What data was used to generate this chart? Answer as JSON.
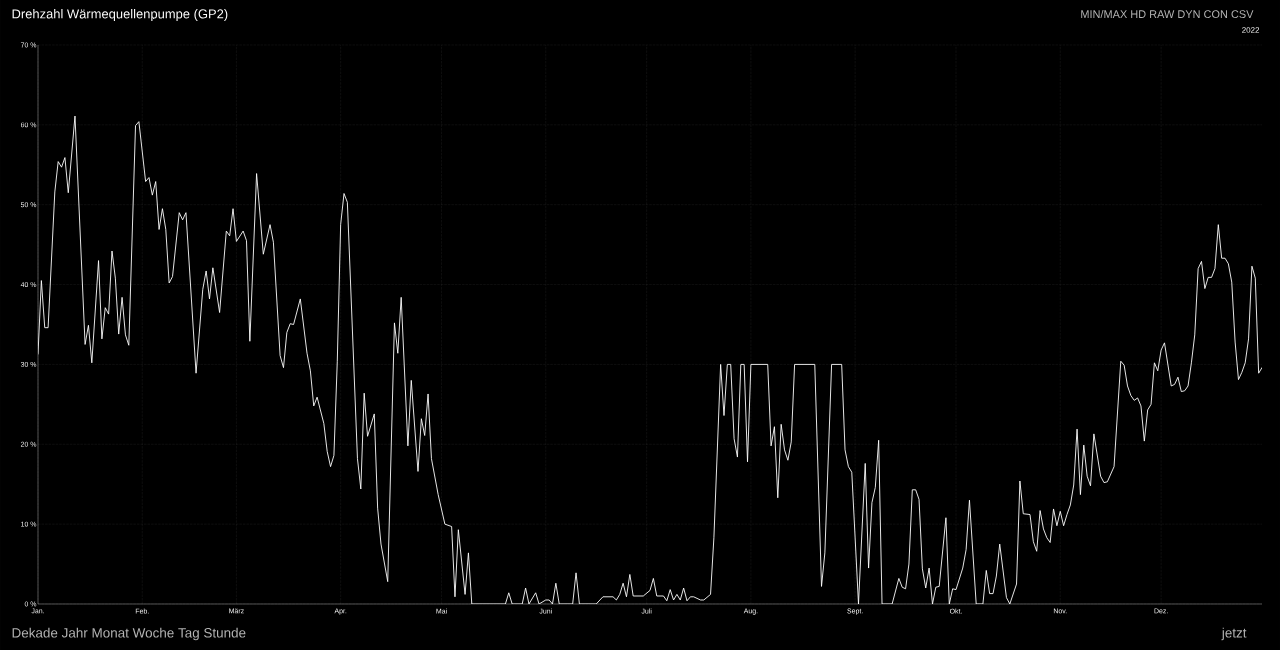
{
  "chart_data": {
    "type": "line",
    "title": "Drehzahl Wärmequellenpumpe (GP2)",
    "subtitle": "2022",
    "annotations": [
      "MIN/MAX",
      "HD",
      "RAW",
      "DYN",
      "CON",
      "CSV",
      "Dekade",
      "Jahr",
      "Monat",
      "Woche",
      "Tag",
      "Stunde",
      "jetzt"
    ],
    "color": "#ffffff",
    "marker": "none",
    "line_style": "solid",
    "grid": true,
    "xlim": [
      "2022-01-01",
      "2022-12-31"
    ],
    "xticks": [
      {
        "value": "2022-01-01",
        "label": "Jan."
      },
      {
        "value": "2022-02-01",
        "label": "Feb."
      },
      {
        "value": "2022-03-01",
        "label": "März"
      },
      {
        "value": "2022-04-01",
        "label": "Apr."
      },
      {
        "value": "2022-05-01",
        "label": "Mai"
      },
      {
        "value": "2022-06-01",
        "label": "Juni"
      },
      {
        "value": "2022-07-01",
        "label": "Juli"
      },
      {
        "value": "2022-08-01",
        "label": "Aug."
      },
      {
        "value": "2022-09-01",
        "label": "Sept."
      },
      {
        "value": "2022-10-01",
        "label": "Okt."
      },
      {
        "value": "2022-11-01",
        "label": "Nov."
      },
      {
        "value": "2022-12-01",
        "label": "Dez."
      }
    ],
    "ylim": [
      0,
      70
    ],
    "yticks": [
      {
        "value": 0,
        "label": "0 %"
      },
      {
        "value": 10,
        "label": "10 %"
      },
      {
        "value": 20,
        "label": "20 %"
      },
      {
        "value": 30,
        "label": "30 %"
      },
      {
        "value": 40,
        "label": "40 %"
      },
      {
        "value": 50,
        "label": "50 %"
      },
      {
        "value": 60,
        "label": "60 %"
      },
      {
        "value": 70,
        "label": "70 %"
      }
    ],
    "x": [
      "2022-01-01",
      "2022-01-02",
      "2022-01-03",
      "2022-01-04",
      "2022-01-06",
      "2022-01-07",
      "2022-01-08",
      "2022-01-09",
      "2022-01-10",
      "2022-01-12",
      "2022-01-15",
      "2022-01-16",
      "2022-01-17",
      "2022-01-19",
      "2022-01-20",
      "2022-01-21",
      "2022-01-22",
      "2022-01-23",
      "2022-01-24",
      "2022-01-25",
      "2022-01-26",
      "2022-01-27",
      "2022-01-28",
      "2022-01-30",
      "2022-01-31",
      "2022-02-02",
      "2022-02-03",
      "2022-02-04",
      "2022-02-05",
      "2022-02-06",
      "2022-02-07",
      "2022-02-08",
      "2022-02-09",
      "2022-02-10",
      "2022-02-12",
      "2022-02-13",
      "2022-02-14",
      "2022-02-17",
      "2022-02-19",
      "2022-02-20",
      "2022-02-21",
      "2022-02-22",
      "2022-02-24",
      "2022-02-26",
      "2022-02-27",
      "2022-02-28",
      "2022-03-01",
      "2022-03-03",
      "2022-03-04",
      "2022-03-05",
      "2022-03-07",
      "2022-03-09",
      "2022-03-11",
      "2022-03-12",
      "2022-03-14",
      "2022-03-15",
      "2022-03-16",
      "2022-03-17",
      "2022-03-18",
      "2022-03-20",
      "2022-03-22",
      "2022-03-23",
      "2022-03-24",
      "2022-03-25",
      "2022-03-27",
      "2022-03-28",
      "2022-03-29",
      "2022-03-30",
      "2022-03-31",
      "2022-04-01",
      "2022-04-02",
      "2022-04-03",
      "2022-04-06",
      "2022-04-07",
      "2022-04-08",
      "2022-04-09",
      "2022-04-11",
      "2022-04-12",
      "2022-04-13",
      "2022-04-15",
      "2022-04-17",
      "2022-04-18",
      "2022-04-19",
      "2022-04-21",
      "2022-04-22",
      "2022-04-24",
      "2022-04-25",
      "2022-04-26",
      "2022-04-27",
      "2022-04-28",
      "2022-04-30",
      "2022-05-02",
      "2022-05-04",
      "2022-05-05",
      "2022-05-06",
      "2022-05-08",
      "2022-05-09",
      "2022-05-10",
      "2022-05-20",
      "2022-05-21",
      "2022-05-22",
      "2022-05-25",
      "2022-05-26",
      "2022-05-27",
      "2022-05-29",
      "2022-05-30",
      "2022-06-01",
      "2022-06-02",
      "2022-06-03",
      "2022-06-04",
      "2022-06-05",
      "2022-06-09",
      "2022-06-10",
      "2022-06-11",
      "2022-06-16",
      "2022-06-18",
      "2022-06-21",
      "2022-06-22",
      "2022-06-23",
      "2022-06-24",
      "2022-06-25",
      "2022-06-26",
      "2022-06-27",
      "2022-06-30",
      "2022-07-02",
      "2022-07-03",
      "2022-07-04",
      "2022-07-06",
      "2022-07-07",
      "2022-07-08",
      "2022-07-09",
      "2022-07-10",
      "2022-07-11",
      "2022-07-12",
      "2022-07-13",
      "2022-07-14",
      "2022-07-15",
      "2022-07-17",
      "2022-07-18",
      "2022-07-20",
      "2022-07-21",
      "2022-07-23",
      "2022-07-24",
      "2022-07-25",
      "2022-07-26",
      "2022-07-27",
      "2022-07-28",
      "2022-07-29",
      "2022-07-30",
      "2022-07-31",
      "2022-08-01",
      "2022-08-06",
      "2022-08-07",
      "2022-08-08",
      "2022-08-09",
      "2022-08-10",
      "2022-08-11",
      "2022-08-12",
      "2022-08-13",
      "2022-08-14",
      "2022-08-20",
      "2022-08-22",
      "2022-08-23",
      "2022-08-25",
      "2022-08-28",
      "2022-08-29",
      "2022-08-30",
      "2022-08-31",
      "2022-09-02",
      "2022-09-04",
      "2022-09-05",
      "2022-09-06",
      "2022-09-07",
      "2022-09-08",
      "2022-09-09",
      "2022-09-12",
      "2022-09-14",
      "2022-09-15",
      "2022-09-16",
      "2022-09-17",
      "2022-09-18",
      "2022-09-19",
      "2022-09-20",
      "2022-09-21",
      "2022-09-22",
      "2022-09-23",
      "2022-09-24",
      "2022-09-25",
      "2022-09-26",
      "2022-09-28",
      "2022-09-29",
      "2022-09-30",
      "2022-10-01",
      "2022-10-03",
      "2022-10-04",
      "2022-10-05",
      "2022-10-07",
      "2022-10-09",
      "2022-10-10",
      "2022-10-11",
      "2022-10-12",
      "2022-10-13",
      "2022-10-14",
      "2022-10-16",
      "2022-10-17",
      "2022-10-19",
      "2022-10-20",
      "2022-10-21",
      "2022-10-23",
      "2022-10-24",
      "2022-10-25",
      "2022-10-26",
      "2022-10-27",
      "2022-10-28",
      "2022-10-29",
      "2022-10-30",
      "2022-10-31",
      "2022-11-01",
      "2022-11-02",
      "2022-11-03",
      "2022-11-04",
      "2022-11-05",
      "2022-11-06",
      "2022-11-07",
      "2022-11-08",
      "2022-11-09",
      "2022-11-10",
      "2022-11-11",
      "2022-11-13",
      "2022-11-14",
      "2022-11-15",
      "2022-11-17",
      "2022-11-19",
      "2022-11-20",
      "2022-11-21",
      "2022-11-22",
      "2022-11-23",
      "2022-11-24",
      "2022-11-25",
      "2022-11-26",
      "2022-11-27",
      "2022-11-28",
      "2022-11-29",
      "2022-11-30",
      "2022-12-01",
      "2022-12-02",
      "2022-12-04",
      "2022-12-05",
      "2022-12-06",
      "2022-12-07",
      "2022-12-08",
      "2022-12-09",
      "2022-12-10",
      "2022-12-11",
      "2022-12-12",
      "2022-12-13",
      "2022-12-14",
      "2022-12-15",
      "2022-12-16",
      "2022-12-17",
      "2022-12-18",
      "2022-12-19",
      "2022-12-20",
      "2022-12-21",
      "2022-12-22",
      "2022-12-23",
      "2022-12-24",
      "2022-12-25",
      "2022-12-26",
      "2022-12-27",
      "2022-12-28",
      "2022-12-29",
      "2022-12-30",
      "2022-12-31"
    ],
    "values": [
      31.3,
      40.5,
      34.6,
      34.6,
      51.6,
      55.4,
      54.7,
      55.9,
      51.5,
      61.1,
      32.5,
      34.9,
      30.2,
      43.0,
      33.2,
      37.1,
      36.3,
      44.2,
      40.8,
      33.8,
      38.4,
      33.7,
      32.4,
      59.9,
      60.4,
      52.9,
      53.4,
      51.2,
      52.9,
      46.9,
      49.5,
      46.9,
      40.2,
      41.0,
      49.0,
      48.1,
      49.0,
      28.9,
      39.4,
      41.7,
      38.2,
      42.1,
      36.5,
      46.7,
      46.1,
      49.5,
      45.4,
      46.7,
      45.5,
      32.9,
      53.9,
      43.8,
      47.5,
      45.3,
      31.1,
      29.6,
      34.0,
      35.1,
      35.0,
      38.2,
      31.4,
      29.2,
      24.8,
      25.9,
      22.6,
      19.1,
      17.2,
      18.6,
      30.4,
      47.5,
      51.4,
      50.3,
      18.2,
      14.4,
      26.4,
      21.0,
      23.8,
      12.0,
      7.5,
      2.8,
      35.2,
      31.4,
      38.4,
      19.8,
      28.0,
      16.6,
      23.2,
      21.1,
      26.3,
      18.2,
      13.7,
      10.0,
      9.7,
      0.9,
      9.3,
      1.2,
      6.4,
      0,
      0,
      1.4,
      0,
      0,
      2.0,
      0,
      1.4,
      0,
      0.5,
      0.5,
      0,
      2.6,
      0,
      0,
      3.9,
      0,
      0,
      0.9,
      0.9,
      0.5,
      1.2,
      2.6,
      0.9,
      3.7,
      1.0,
      1.0,
      1.7,
      3.2,
      1.0,
      1.0,
      0.4,
      1.8,
      0.5,
      1.2,
      0.5,
      2.0,
      0.4,
      0.9,
      0.9,
      0.5,
      0.5,
      1.2,
      8.3,
      30,
      23.6,
      30,
      30,
      20.7,
      18.4,
      30,
      30,
      17.8,
      30,
      30,
      19.8,
      22.2,
      13.3,
      22.5,
      19.3,
      18.0,
      20.3,
      30,
      30,
      2.2,
      6.4,
      30,
      30,
      19.3,
      17.2,
      16.5,
      0,
      17.6,
      4.5,
      12.7,
      14.6,
      20.5,
      0,
      0,
      3.2,
      2.1,
      1.9,
      5.0,
      14.3,
      14.3,
      13.1,
      4.4,
      2.0,
      4.5,
      0,
      2.1,
      2.2,
      10.8,
      0,
      1.9,
      1.8,
      4.5,
      6.8,
      13.0,
      0,
      0,
      4.2,
      1.3,
      1.3,
      3.5,
      7.5,
      0.8,
      0,
      2.5,
      15.4,
      11.3,
      11.2,
      7.8,
      6.6,
      11.7,
      9.4,
      8.3,
      7.7,
      11.9,
      9.8,
      11.6,
      9.8,
      11.2,
      12.4,
      14.9,
      21.9,
      13.7,
      19.9,
      16.0,
      14.8,
      21.3,
      16.0,
      15.2,
      15.3,
      17.2,
      30.4,
      29.9,
      27.3,
      26.1,
      25.5,
      25.8,
      24.8,
      20.4,
      24.3,
      25.0,
      30.2,
      29.2,
      31.8,
      32.7,
      27.3,
      27.5,
      28.4,
      26.6,
      26.7,
      27.3,
      30.2,
      33.7,
      42.0,
      42.9,
      39.5,
      40.9,
      40.9,
      42.0,
      47.5,
      43.3,
      43.3,
      42.6,
      40.3,
      32.8,
      28.1,
      29.0,
      30.2,
      33.2,
      42.3,
      40.8,
      28.9,
      29.6
    ]
  }
}
